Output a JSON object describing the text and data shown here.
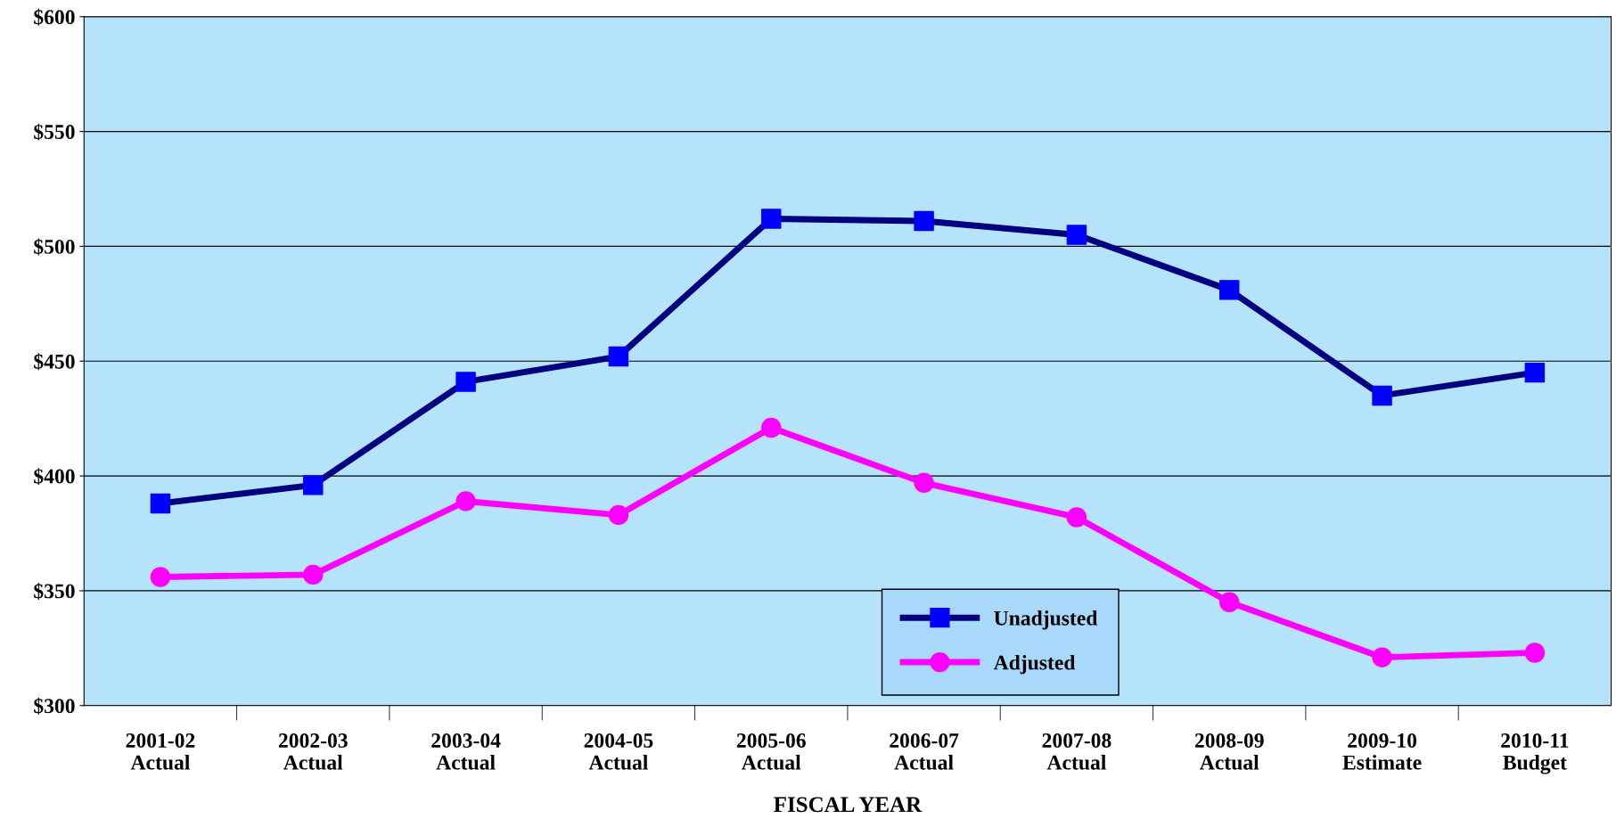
{
  "chart_data": {
    "type": "line",
    "xlabel": "FISCAL YEAR",
    "categories": [
      "2001-02\nActual",
      "2002-03\nActual",
      "2003-04\nActual",
      "2004-05\nActual",
      "2005-06\nActual",
      "2006-07\nActual",
      "2007-08\nActual",
      "2008-09\nActual",
      "2009-10\nEstimate",
      "2010-11\nBudget"
    ],
    "series": [
      {
        "name": "Unadjusted",
        "color": "#000080",
        "colors": [
          "#0000ff",
          "#0000ff",
          "#0000ff",
          "#0000ff",
          "#0000ff",
          "#0000ff",
          "#0000ff",
          "#0000ff",
          "#0000ff",
          "#0000ff"
        ],
        "marker": "square",
        "values": [
          388,
          396,
          441,
          452,
          512,
          511,
          505,
          481,
          435,
          445
        ]
      },
      {
        "name": "Adjusted",
        "color": "#ff00ff",
        "marker": "circle",
        "values": [
          356,
          357,
          389,
          383,
          421,
          397,
          382,
          345,
          321,
          323
        ]
      }
    ],
    "ylim": [
      300,
      600
    ],
    "yticks": [
      {
        "value": 300,
        "label": "$300"
      },
      {
        "value": 350,
        "label": "$350"
      },
      {
        "value": 400,
        "label": "$400"
      },
      {
        "value": 450,
        "label": "$450"
      },
      {
        "value": 500,
        "label": "$500"
      },
      {
        "value": 550,
        "label": "$550"
      },
      {
        "value": 600,
        "label": "$600"
      }
    ],
    "grid": "y",
    "legend": "bottom",
    "line_style": "solid"
  }
}
